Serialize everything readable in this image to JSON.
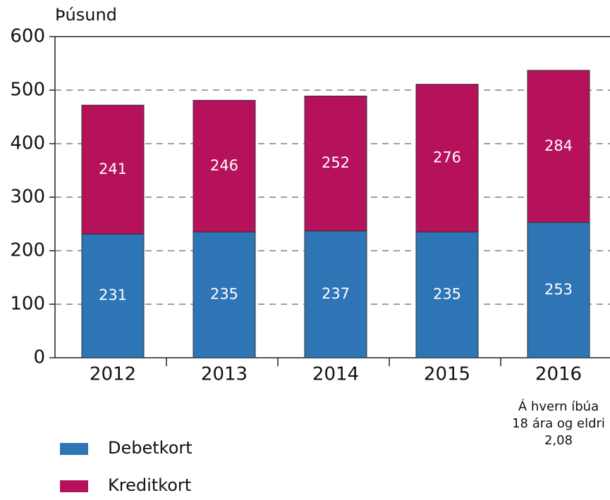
{
  "chart_data": {
    "type": "stacked_bar",
    "y_axis_label": "Þúsund",
    "categories": [
      "2012",
      "2013",
      "2014",
      "2015",
      "2016"
    ],
    "series": [
      {
        "name": "Debetkort",
        "color": "#2e75b6",
        "values": [
          231,
          235,
          237,
          235,
          253
        ]
      },
      {
        "name": "Kreditkort",
        "color": "#b5125b",
        "values": [
          241,
          246,
          252,
          276,
          284
        ]
      }
    ],
    "ylim": [
      0,
      600
    ],
    "yticks": [
      0,
      100,
      200,
      300,
      400,
      500,
      600
    ],
    "grid": true,
    "annotation": [
      "Á hvern íbúa",
      "18 ára og eldri",
      "2,08"
    ],
    "legend": "bottom-left"
  }
}
